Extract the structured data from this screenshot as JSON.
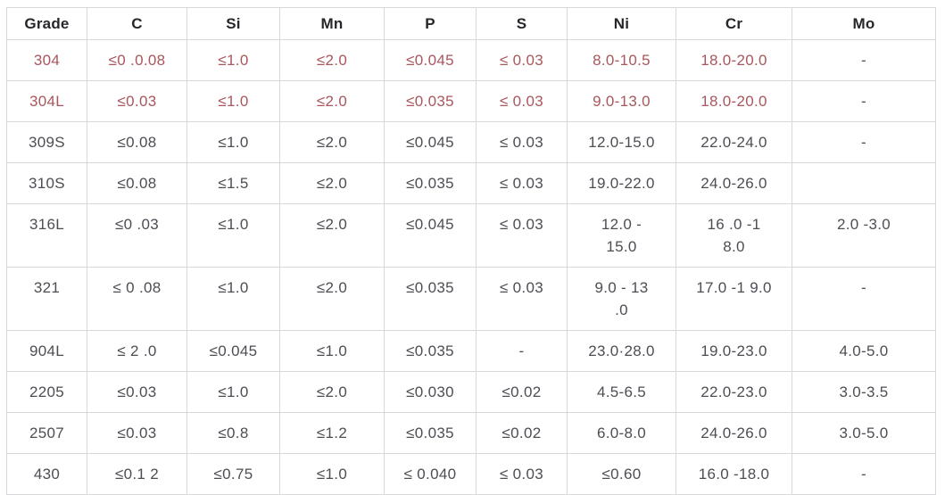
{
  "table": {
    "name": "stainless-steel-chemical-composition",
    "columns": [
      "Grade",
      "C",
      "Si",
      "Mn",
      "P",
      "S",
      "Ni",
      "Cr",
      "Mo"
    ],
    "rows": [
      {
        "grade": "304",
        "highlight": true,
        "muted_cells": [
          8
        ],
        "values": [
          "304",
          "≤0 .0.08",
          "≤1.0",
          "≤2.0",
          "≤0.045",
          "≤ 0.03",
          "8.0-10.5",
          "18.0-20.0",
          "-"
        ]
      },
      {
        "grade": "304L",
        "highlight": true,
        "muted_cells": [
          8
        ],
        "values": [
          "304L",
          "≤0.03",
          "≤1.0",
          "≤2.0",
          "≤0.035",
          "≤ 0.03",
          "9.0-13.0",
          "18.0-20.0",
          "-"
        ]
      },
      {
        "grade": "309S",
        "highlight": false,
        "muted_cells": [],
        "values": [
          "309S",
          "≤0.08",
          "≤1.0",
          "≤2.0",
          "≤0.045",
          "≤ 0.03",
          "12.0-15.0",
          "22.0-24.0",
          "-"
        ]
      },
      {
        "grade": "310S",
        "highlight": false,
        "muted_cells": [],
        "values": [
          "310S",
          "≤0.08",
          "≤1.5",
          "≤2.0",
          "≤0.035",
          "≤ 0.03",
          "19.0-22.0",
          "24.0-26.0",
          ""
        ]
      },
      {
        "grade": "316L",
        "highlight": false,
        "muted_cells": [],
        "values": [
          "316L",
          "≤0 .03",
          "≤1.0",
          "≤2.0",
          "≤0.045",
          "≤ 0.03",
          "12.0 -\n15.0",
          "16 .0 -1\n8.0",
          "2.0 -3.0"
        ]
      },
      {
        "grade": "321",
        "highlight": false,
        "muted_cells": [],
        "values": [
          "321",
          "≤ 0 .08",
          "≤1.0",
          "≤2.0",
          "≤0.035",
          "≤ 0.03",
          "9.0 - 13\n.0",
          "17.0 -1 9.0",
          "-"
        ]
      },
      {
        "grade": "904L",
        "highlight": false,
        "muted_cells": [],
        "values": [
          "904L",
          "≤ 2 .0",
          "≤0.045",
          "≤1.0",
          "≤0.035",
          "-",
          "23.0·28.0",
          "19.0-23.0",
          "4.0-5.0"
        ]
      },
      {
        "grade": "2205",
        "highlight": false,
        "muted_cells": [],
        "values": [
          "2205",
          "≤0.03",
          "≤1.0",
          "≤2.0",
          "≤0.030",
          "≤0.02",
          "4.5-6.5",
          "22.0-23.0",
          "3.0-3.5"
        ]
      },
      {
        "grade": "2507",
        "highlight": false,
        "muted_cells": [],
        "values": [
          "2507",
          "≤0.03",
          "≤0.8",
          "≤1.2",
          "≤0.035",
          "≤0.02",
          "6.0-8.0",
          "24.0-26.0",
          "3.0-5.0"
        ]
      },
      {
        "grade": "430",
        "highlight": false,
        "muted_cells": [],
        "values": [
          "430",
          "≤0.1 2",
          "≤0.75",
          "≤1.0",
          "≤ 0.040",
          "≤ 0.03",
          "≤0.60",
          "16.0 -18.0",
          "-"
        ]
      }
    ]
  },
  "colors": {
    "accent_red": "#a9565c",
    "body_text": "#4d4d54",
    "header_text": "#27272b",
    "border": "#d8d8dc"
  }
}
